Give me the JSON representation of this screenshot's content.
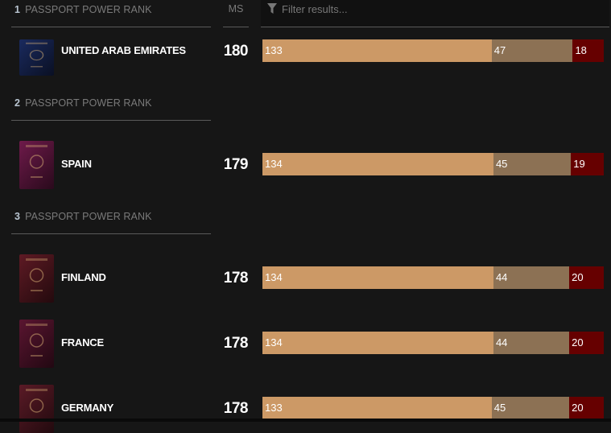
{
  "header": {
    "ms_label": "MS",
    "filter_placeholder": "Filter results...",
    "filter_icon": "funnel-icon"
  },
  "rank_label": "PASSPORT POWER RANK",
  "colors": {
    "visa_free": "#cc9966",
    "visa_on_arrival": "#8c7154",
    "visa_required": "#660000",
    "background": "#161616"
  },
  "ranks": [
    {
      "rank": "1",
      "label": "PASSPORT POWER RANK"
    },
    {
      "rank": "2",
      "label": "PASSPORT POWER RANK"
    },
    {
      "rank": "3",
      "label": "PASSPORT POWER RANK"
    }
  ],
  "countries": [
    {
      "name": "UNITED ARAB EMIRATES",
      "ms": "180",
      "segments": [
        133,
        47,
        18
      ],
      "passport_color": "#1a2a5e"
    },
    {
      "name": "SPAIN",
      "ms": "179",
      "segments": [
        134,
        45,
        19
      ],
      "passport_color": "#6e1a4a"
    },
    {
      "name": "FINLAND",
      "ms": "178",
      "segments": [
        134,
        44,
        20
      ],
      "passport_color": "#5e1a24"
    },
    {
      "name": "FRANCE",
      "ms": "178",
      "segments": [
        134,
        44,
        20
      ],
      "passport_color": "#5a1530"
    },
    {
      "name": "GERMANY",
      "ms": "178",
      "segments": [
        133,
        45,
        20
      ],
      "passport_color": "#5a1a26"
    }
  ]
}
